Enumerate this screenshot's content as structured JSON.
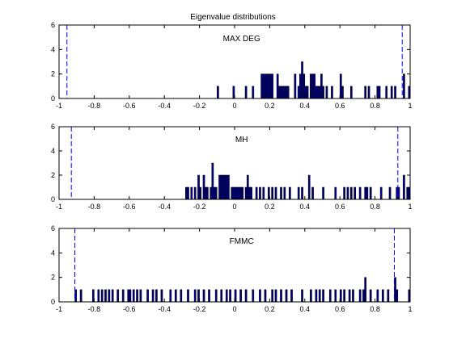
{
  "figure_title": "Eigenvalue distributions",
  "chart_data": [
    {
      "type": "bar",
      "label": "MAX DEG",
      "xlim": [
        -1,
        1
      ],
      "ylim": [
        0,
        6
      ],
      "xticks": [
        "-1",
        "-0.8",
        "-0.6",
        "-0.4",
        "-0.2",
        "0",
        "0.2",
        "0.4",
        "0.6",
        "0.8",
        "1"
      ],
      "yticks": [
        "0",
        "2",
        "4",
        "6"
      ],
      "bar_width": 0.01,
      "bars": [
        [
          -0.095,
          1
        ],
        [
          -0.005,
          1
        ],
        [
          0.065,
          1
        ],
        [
          0.105,
          1
        ],
        [
          0.155,
          2
        ],
        [
          0.165,
          2
        ],
        [
          0.175,
          2
        ],
        [
          0.185,
          2
        ],
        [
          0.195,
          2
        ],
        [
          0.205,
          2
        ],
        [
          0.215,
          2
        ],
        [
          0.245,
          2
        ],
        [
          0.255,
          1
        ],
        [
          0.265,
          1
        ],
        [
          0.275,
          1
        ],
        [
          0.285,
          1
        ],
        [
          0.295,
          1
        ],
        [
          0.305,
          1
        ],
        [
          0.345,
          2
        ],
        [
          0.365,
          1
        ],
        [
          0.375,
          2
        ],
        [
          0.385,
          3
        ],
        [
          0.395,
          2
        ],
        [
          0.405,
          1
        ],
        [
          0.415,
          1
        ],
        [
          0.435,
          2
        ],
        [
          0.445,
          2
        ],
        [
          0.455,
          2
        ],
        [
          0.465,
          1
        ],
        [
          0.475,
          1
        ],
        [
          0.485,
          1
        ],
        [
          0.495,
          2
        ],
        [
          0.505,
          1
        ],
        [
          0.525,
          1
        ],
        [
          0.555,
          1
        ],
        [
          0.605,
          2
        ],
        [
          0.615,
          1
        ],
        [
          0.665,
          1
        ],
        [
          0.745,
          1
        ],
        [
          0.765,
          1
        ],
        [
          0.815,
          1
        ],
        [
          0.825,
          1
        ],
        [
          0.865,
          1
        ],
        [
          0.895,
          1
        ],
        [
          0.915,
          1
        ],
        [
          0.965,
          2
        ],
        [
          0.995,
          1
        ]
      ],
      "dashed_lines": [
        -0.955,
        0.955
      ],
      "color": "#000080"
    },
    {
      "type": "bar",
      "label": "MH",
      "xlim": [
        -1,
        1
      ],
      "ylim": [
        0,
        6
      ],
      "xticks": [
        "-1",
        "-0.8",
        "-0.6",
        "-0.4",
        "-0.2",
        "0",
        "0.2",
        "0.4",
        "0.6",
        "0.8",
        "1"
      ],
      "yticks": [
        "0",
        "2",
        "4",
        "6"
      ],
      "bar_width": 0.01,
      "bars": [
        [
          -0.275,
          1
        ],
        [
          -0.265,
          1
        ],
        [
          -0.245,
          1
        ],
        [
          -0.225,
          1
        ],
        [
          -0.205,
          2
        ],
        [
          -0.195,
          1
        ],
        [
          -0.175,
          2
        ],
        [
          -0.165,
          1
        ],
        [
          -0.155,
          1
        ],
        [
          -0.135,
          1
        ],
        [
          -0.125,
          3
        ],
        [
          -0.115,
          1
        ],
        [
          -0.105,
          1
        ],
        [
          -0.085,
          2
        ],
        [
          -0.075,
          2
        ],
        [
          -0.065,
          2
        ],
        [
          -0.055,
          2
        ],
        [
          -0.045,
          2
        ],
        [
          -0.035,
          2
        ],
        [
          -0.015,
          1
        ],
        [
          -0.005,
          1
        ],
        [
          0.005,
          1
        ],
        [
          0.015,
          1
        ],
        [
          0.025,
          1
        ],
        [
          0.035,
          1
        ],
        [
          0.045,
          1
        ],
        [
          0.065,
          1
        ],
        [
          0.075,
          2
        ],
        [
          0.085,
          1
        ],
        [
          0.095,
          1
        ],
        [
          0.125,
          1
        ],
        [
          0.145,
          1
        ],
        [
          0.165,
          1
        ],
        [
          0.195,
          1
        ],
        [
          0.215,
          1
        ],
        [
          0.235,
          1
        ],
        [
          0.265,
          1
        ],
        [
          0.285,
          1
        ],
        [
          0.315,
          1
        ],
        [
          0.365,
          1
        ],
        [
          0.385,
          1
        ],
        [
          0.425,
          2
        ],
        [
          0.445,
          1
        ],
        [
          0.505,
          1
        ],
        [
          0.575,
          1
        ],
        [
          0.625,
          1
        ],
        [
          0.645,
          1
        ],
        [
          0.665,
          1
        ],
        [
          0.685,
          1
        ],
        [
          0.715,
          1
        ],
        [
          0.745,
          1
        ],
        [
          0.755,
          1
        ],
        [
          0.775,
          1
        ],
        [
          0.835,
          1
        ],
        [
          0.885,
          1
        ],
        [
          0.925,
          1
        ],
        [
          0.935,
          1
        ],
        [
          0.965,
          2
        ],
        [
          0.985,
          1
        ],
        [
          0.995,
          1
        ]
      ],
      "dashed_lines": [
        -0.93,
        0.93
      ],
      "color": "#000080"
    },
    {
      "type": "bar",
      "label": "FMMC",
      "xlim": [
        -1,
        1
      ],
      "ylim": [
        0,
        6
      ],
      "xticks": [
        "-1",
        "-0.8",
        "-0.6",
        "-0.4",
        "-0.2",
        "0",
        "0.2",
        "0.4",
        "0.6",
        "0.8",
        "1"
      ],
      "yticks": [
        "0",
        "2",
        "4",
        "6"
      ],
      "bar_width": 0.01,
      "bars": [
        [
          -0.905,
          1
        ],
        [
          -0.875,
          1
        ],
        [
          -0.805,
          1
        ],
        [
          -0.775,
          1
        ],
        [
          -0.755,
          1
        ],
        [
          -0.735,
          1
        ],
        [
          -0.715,
          1
        ],
        [
          -0.695,
          1
        ],
        [
          -0.665,
          1
        ],
        [
          -0.635,
          1
        ],
        [
          -0.605,
          1
        ],
        [
          -0.595,
          1
        ],
        [
          -0.575,
          1
        ],
        [
          -0.555,
          1
        ],
        [
          -0.535,
          1
        ],
        [
          -0.495,
          1
        ],
        [
          -0.465,
          1
        ],
        [
          -0.445,
          1
        ],
        [
          -0.415,
          1
        ],
        [
          -0.365,
          1
        ],
        [
          -0.335,
          1
        ],
        [
          -0.305,
          1
        ],
        [
          -0.265,
          1
        ],
        [
          -0.225,
          1
        ],
        [
          -0.205,
          1
        ],
        [
          -0.175,
          1
        ],
        [
          -0.145,
          1
        ],
        [
          -0.105,
          1
        ],
        [
          -0.075,
          1
        ],
        [
          -0.045,
          1
        ],
        [
          -0.025,
          1
        ],
        [
          0.005,
          1
        ],
        [
          0.035,
          1
        ],
        [
          0.065,
          1
        ],
        [
          0.105,
          1
        ],
        [
          0.145,
          1
        ],
        [
          0.175,
          1
        ],
        [
          0.215,
          1
        ],
        [
          0.235,
          1
        ],
        [
          0.265,
          1
        ],
        [
          0.295,
          1
        ],
        [
          0.325,
          1
        ],
        [
          0.385,
          1
        ],
        [
          0.435,
          1
        ],
        [
          0.465,
          1
        ],
        [
          0.485,
          1
        ],
        [
          0.505,
          1
        ],
        [
          0.545,
          1
        ],
        [
          0.575,
          1
        ],
        [
          0.605,
          1
        ],
        [
          0.625,
          1
        ],
        [
          0.655,
          1
        ],
        [
          0.675,
          1
        ],
        [
          0.715,
          1
        ],
        [
          0.735,
          1
        ],
        [
          0.745,
          2
        ],
        [
          0.775,
          1
        ],
        [
          0.815,
          1
        ],
        [
          0.845,
          1
        ],
        [
          0.875,
          1
        ],
        [
          0.915,
          2
        ],
        [
          0.925,
          1
        ],
        [
          0.995,
          1
        ]
      ],
      "dashed_lines": [
        -0.91,
        0.91
      ],
      "color": "#000080"
    }
  ]
}
